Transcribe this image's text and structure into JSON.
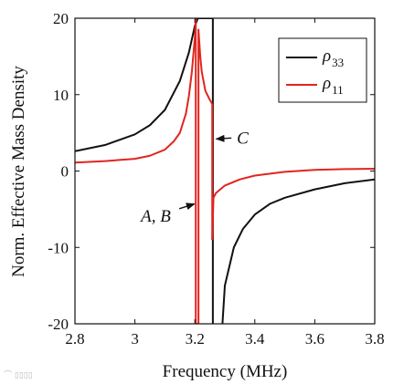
{
  "chart_data": {
    "type": "line",
    "xlabel": "Frequency (MHz)",
    "ylabel": "Norm. Effective Mass Density",
    "xlim": [
      2.8,
      3.8
    ],
    "ylim": [
      -20,
      20
    ],
    "x_ticks": [
      "2.8",
      "3",
      "3.2",
      "3.4",
      "3.6",
      "3.8"
    ],
    "y_ticks": [
      "-20",
      "-10",
      "0",
      "10",
      "20"
    ],
    "grid": false,
    "legend_position": "top-right",
    "series": [
      {
        "name": "ρ33",
        "name_symbol": "ρ",
        "name_sub": "33",
        "color": "#111111",
        "segments": [
          {
            "x": [
              2.8,
              2.9,
              3.0,
              3.05,
              3.1,
              3.15,
              3.18,
              3.2,
              3.21
            ],
            "y": [
              2.6,
              3.4,
              4.8,
              6.0,
              8.0,
              11.8,
              15.5,
              19.0,
              20.0
            ]
          },
          {
            "x": [
              3.21,
              3.24,
              3.26
            ],
            "y": [
              20.0,
              20.0,
              20.0
            ]
          },
          {
            "x": [
              3.26,
              3.26
            ],
            "y": [
              20.0,
              -20.0
            ]
          },
          {
            "x": [
              3.292,
              3.3,
              3.33,
              3.36,
              3.4,
              3.45,
              3.5,
              3.6,
              3.7,
              3.8
            ],
            "y": [
              -20.0,
              -15.0,
              -10.0,
              -7.6,
              -5.7,
              -4.3,
              -3.5,
              -2.4,
              -1.6,
              -1.1
            ]
          }
        ]
      },
      {
        "name": "ρ11",
        "name_symbol": "ρ",
        "name_sub": "11",
        "color": "#e0251f",
        "segments": [
          {
            "x": [
              2.8,
              2.9,
              3.0,
              3.05,
              3.1,
              3.13,
              3.15,
              3.17,
              3.18,
              3.19,
              3.2,
              3.203
            ],
            "y": [
              1.1,
              1.3,
              1.6,
              2.0,
              2.8,
              3.9,
              5.0,
              7.5,
              9.8,
              13.0,
              17.5,
              20.0
            ]
          },
          {
            "x": [
              3.203,
              3.203,
              3.212,
              3.212,
              3.218,
              3.223,
              3.235,
              3.25,
              3.255,
              3.257
            ],
            "y": [
              20.0,
              -20.0,
              -20.0,
              18.5,
              15.0,
              13.0,
              10.5,
              9.3,
              9.0,
              8.8
            ]
          },
          {
            "x": [
              3.258,
              3.258
            ],
            "y": [
              8.8,
              -9.0
            ]
          },
          {
            "x": [
              3.258,
              3.262,
              3.27,
              3.3,
              3.35,
              3.4,
              3.5,
              3.6,
              3.7,
              3.8
            ],
            "y": [
              -9.0,
              -3.5,
              -2.9,
              -1.9,
              -1.1,
              -0.6,
              -0.1,
              0.15,
              0.25,
              0.3
            ]
          }
        ]
      }
    ],
    "annotations": [
      {
        "text": "C",
        "point_x": 3.262,
        "point_y": 4.2,
        "label_x": 3.34,
        "label_y": 3.6
      },
      {
        "text": "A, B",
        "point_x": 3.208,
        "point_y": -4.3,
        "label_x": 3.02,
        "label_y": -6.6
      }
    ]
  }
}
